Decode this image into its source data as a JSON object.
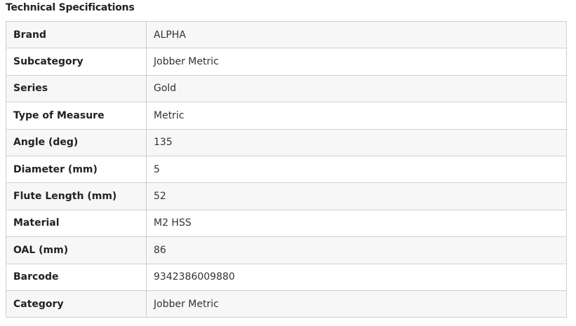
{
  "title": "Technical Specifications",
  "rows": [
    {
      "label": "Brand",
      "value": "ALPHA"
    },
    {
      "label": "Subcategory",
      "value": "Jobber Metric"
    },
    {
      "label": "Series",
      "value": "Gold"
    },
    {
      "label": "Type of Measure",
      "value": "Metric"
    },
    {
      "label": "Angle (deg)",
      "value": "135"
    },
    {
      "label": "Diameter (mm)",
      "value": "5"
    },
    {
      "label": "Flute Length (mm)",
      "value": "52"
    },
    {
      "label": "Material",
      "value": "M2 HSS"
    },
    {
      "label": "OAL (mm)",
      "value": "86"
    },
    {
      "label": "Barcode",
      "value": "9342386009880"
    },
    {
      "label": "Category",
      "value": "Jobber Metric"
    }
  ]
}
